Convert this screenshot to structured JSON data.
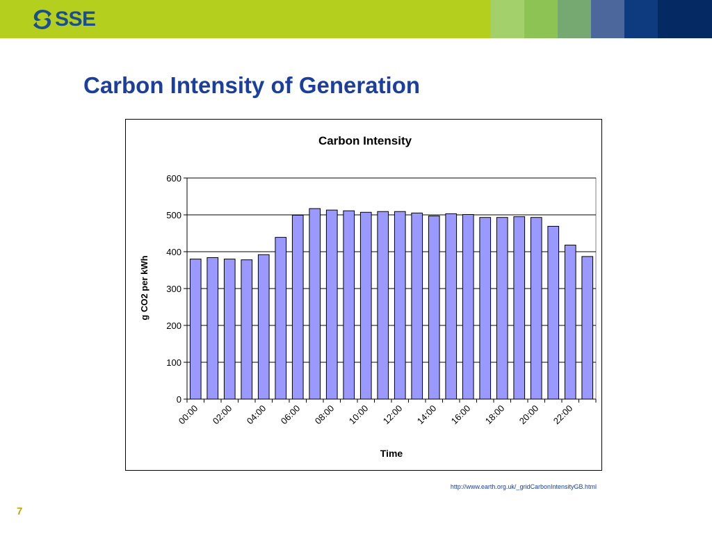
{
  "slide": {
    "logo_text": "SSE",
    "title": "Carbon Intensity of Generation",
    "source": "http://www.earth.org.uk/_gridCarbonIntensityGB.html",
    "page_number": "7",
    "header_colors": {
      "band": "#b5cf1e",
      "blocks": [
        "#a3d06b",
        "#8dc355",
        "#76a872",
        "#4b679b",
        "#0e3a7f",
        "#052a63"
      ]
    }
  },
  "chart_data": {
    "type": "bar",
    "title": "Carbon Intensity",
    "xlabel": "Time",
    "ylabel": "g CO2 per kWh",
    "ylim": [
      0,
      600
    ],
    "yticks": [
      0,
      100,
      200,
      300,
      400,
      500,
      600
    ],
    "grid": true,
    "legend": "none",
    "bar_color": "#9999ff",
    "categories": [
      "00:00",
      "01:00",
      "02:00",
      "03:00",
      "04:00",
      "05:00",
      "06:00",
      "07:00",
      "08:00",
      "09:00",
      "10:00",
      "11:00",
      "12:00",
      "13:00",
      "14:00",
      "15:00",
      "16:00",
      "17:00",
      "18:00",
      "19:00",
      "20:00",
      "21:00",
      "22:00",
      "23:00"
    ],
    "tick_labels": [
      "00:00",
      "",
      "02:00",
      "",
      "04:00",
      "",
      "06:00",
      "",
      "08:00",
      "",
      "10:00",
      "",
      "12:00",
      "",
      "14:00",
      "",
      "16:00",
      "",
      "18:00",
      "",
      "20:00",
      "",
      "22:00",
      ""
    ],
    "values": [
      380,
      384,
      380,
      378,
      392,
      439,
      499,
      517,
      513,
      511,
      507,
      509,
      509,
      505,
      497,
      503,
      501,
      493,
      493,
      495,
      493,
      469,
      418,
      387
    ]
  }
}
